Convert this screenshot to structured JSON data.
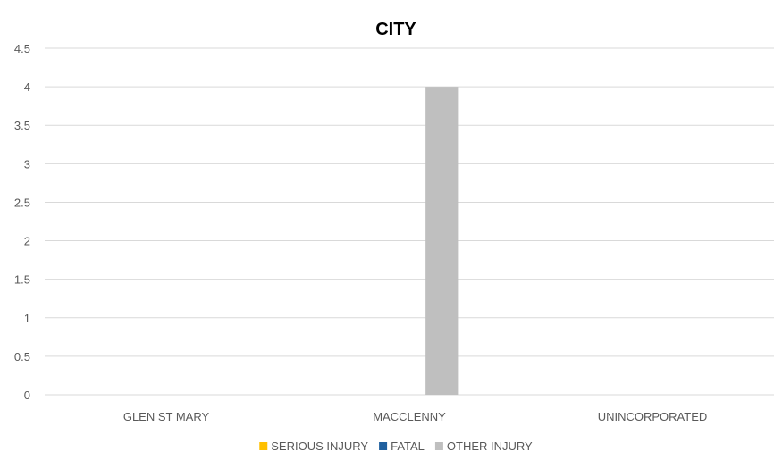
{
  "chart_data": {
    "type": "bar",
    "title": "CITY",
    "xlabel": "",
    "ylabel": "",
    "categories": [
      "GLEN ST MARY",
      "MACCLENNY",
      "UNINCORPORATED"
    ],
    "series": [
      {
        "name": "SERIOUS INJURY",
        "color": "#FFC000",
        "values": [
          0,
          0,
          0
        ]
      },
      {
        "name": "FATAL",
        "color": "#1F5F9E",
        "values": [
          0,
          0,
          0
        ]
      },
      {
        "name": "OTHER INJURY",
        "color": "#BFBFBF",
        "values": [
          0,
          4,
          0
        ]
      }
    ],
    "ylim": [
      0,
      4.5
    ],
    "yticks": [
      "0",
      "0.5",
      "1",
      "1.5",
      "2",
      "2.5",
      "3",
      "3.5",
      "4",
      "4.5"
    ],
    "grid": true,
    "legend_position": "bottom"
  }
}
